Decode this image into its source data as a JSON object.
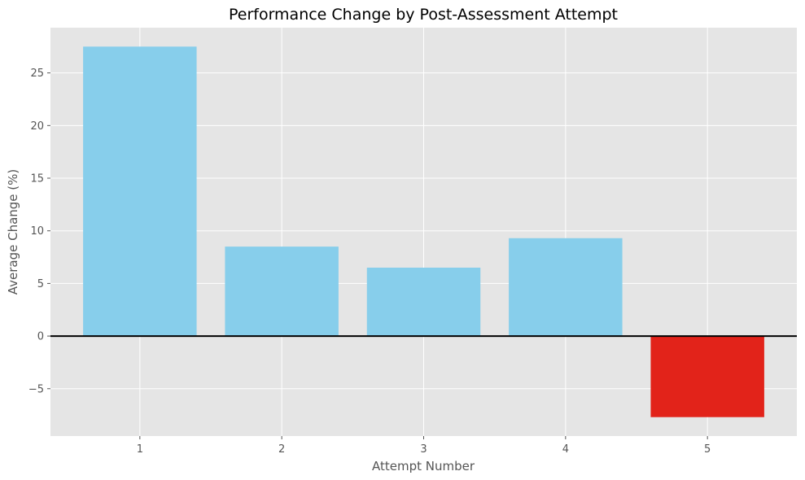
{
  "chart_data": {
    "type": "bar",
    "title": "Performance Change by Post-Assessment Attempt",
    "xlabel": "Attempt Number",
    "ylabel": "Average Change (%)",
    "categories": [
      "1",
      "2",
      "3",
      "4",
      "5"
    ],
    "values": [
      27.5,
      8.5,
      6.5,
      9.3,
      -7.7
    ],
    "ylim": [
      -9.5,
      29.3
    ],
    "yticks": [
      -5,
      0,
      5,
      10,
      15,
      20,
      25
    ],
    "ytick_labels": [
      "−5",
      "0",
      "5",
      "10",
      "15",
      "20",
      "25"
    ],
    "grid": true,
    "zero_line": true,
    "colors": {
      "positive": "#87ceeb",
      "negative": "#e2231a",
      "background": "#e5e5e5",
      "grid": "#ffffff",
      "zero_line": "#000000"
    }
  }
}
